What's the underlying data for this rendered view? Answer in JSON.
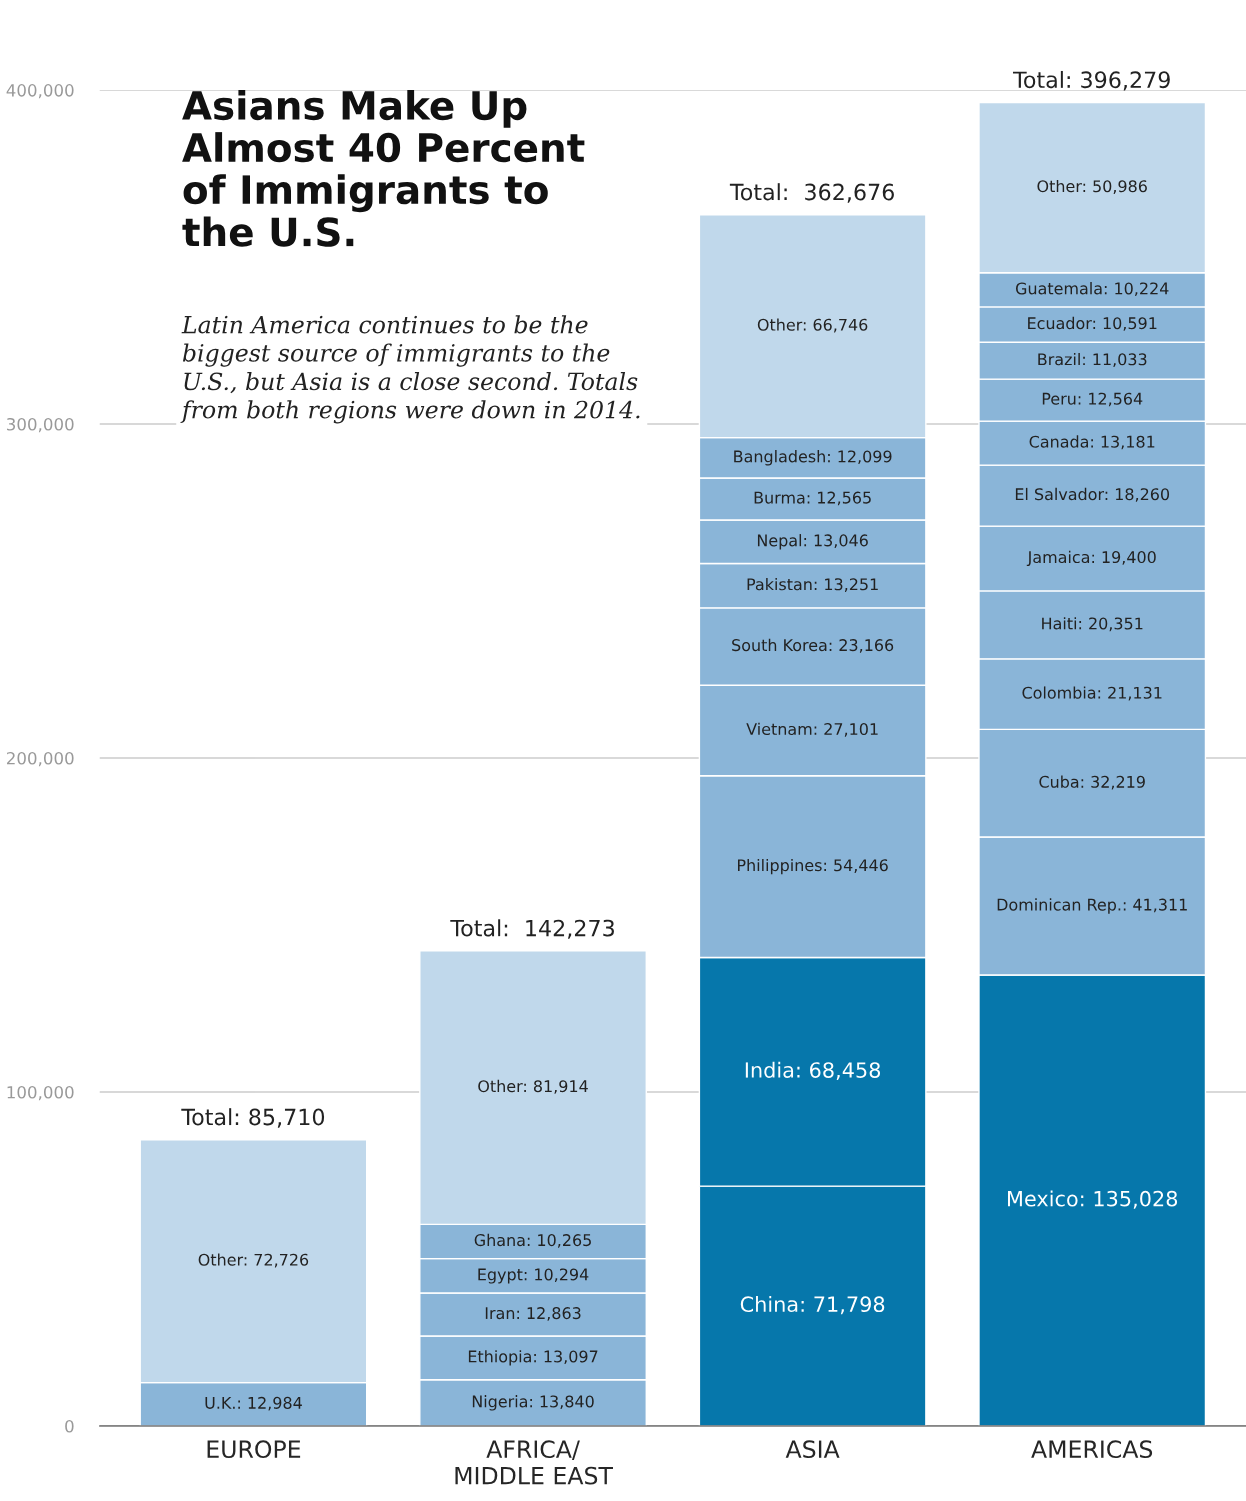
{
  "chart_data": {
    "type": "bar",
    "stacked": true,
    "title": "Asians Make Up Almost 40 Percent of Immigrants to the U.S.",
    "subtitle": "Latin America continues to be the biggest source of immigrants to the U.S., but Asia is a close second. Totals from both regions were down in 2014.",
    "categories": [
      "EUROPE",
      "AFRICA/\nMIDDLE EAST",
      "ASIA",
      "AMERICAS"
    ],
    "ylim": [
      0,
      400000
    ],
    "yticks": [
      {
        "value": 0,
        "label": "0"
      },
      {
        "value": 100000,
        "label": "100,000"
      },
      {
        "value": 200000,
        "label": "200,000"
      },
      {
        "value": 300000,
        "label": "300,000"
      },
      {
        "value": 400000,
        "label": "400,000"
      }
    ],
    "grid": "y",
    "totals": [
      "Total: 85,710",
      "Total:  142,273",
      "Total:  362,676",
      "Total: 396,279"
    ],
    "series": [
      {
        "values": [
          12984,
          13840,
          71798,
          135028
        ],
        "colors": [
          "#8ab5d8",
          "#8ab5d8",
          "#0677ab",
          "#0677ab"
        ],
        "value_labels": [
          "U.K.: 12,984",
          "Nigeria: 13,840",
          "China: 71,798",
          "Mexico: 135,028"
        ]
      },
      {
        "values": [
          72726,
          13097,
          68458,
          41311
        ],
        "colors": [
          "#c0d8eb",
          "#8ab5d8",
          "#0677ab",
          "#8ab5d8"
        ],
        "value_labels": [
          "Other: 72,726",
          "Ethiopia: 13,097",
          "India: 68,458",
          "Dominican Rep.: 41,311"
        ]
      },
      {
        "values": [
          null,
          12863,
          54446,
          32219
        ],
        "colors": [
          null,
          "#8ab5d8",
          "#8ab5d8",
          "#8ab5d8"
        ],
        "value_labels": [
          null,
          "Iran: 12,863",
          "Philippines: 54,446",
          "Cuba: 32,219"
        ]
      },
      {
        "values": [
          null,
          10294,
          27101,
          21131
        ],
        "colors": [
          null,
          "#8ab5d8",
          "#8ab5d8",
          "#8ab5d8"
        ],
        "value_labels": [
          null,
          "Egypt: 10,294",
          "Vietnam: 27,101",
          "Colombia: 21,131"
        ]
      },
      {
        "values": [
          null,
          10265,
          23166,
          20351
        ],
        "colors": [
          null,
          "#8ab5d8",
          "#8ab5d8",
          "#8ab5d8"
        ],
        "value_labels": [
          null,
          "Ghana: 10,265",
          "South Korea: 23,166",
          "Haiti: 20,351"
        ]
      },
      {
        "values": [
          null,
          81914,
          13251,
          19400
        ],
        "colors": [
          null,
          "#c0d8eb",
          "#8ab5d8",
          "#8ab5d8"
        ],
        "value_labels": [
          null,
          "Other: 81,914",
          "Pakistan: 13,251",
          "Jamaica: 19,400"
        ]
      },
      {
        "values": [
          null,
          null,
          13046,
          18260
        ],
        "colors": [
          null,
          null,
          "#8ab5d8",
          "#8ab5d8"
        ],
        "value_labels": [
          null,
          null,
          "Nepal: 13,046",
          "El Salvador: 18,260"
        ]
      },
      {
        "values": [
          null,
          null,
          12565,
          13181
        ],
        "colors": [
          null,
          null,
          "#8ab5d8",
          "#8ab5d8"
        ],
        "value_labels": [
          null,
          null,
          "Burma: 12,565",
          "Canada: 13,181"
        ]
      },
      {
        "values": [
          null,
          null,
          12099,
          12564
        ],
        "colors": [
          null,
          null,
          "#8ab5d8",
          "#8ab5d8"
        ],
        "value_labels": [
          null,
          null,
          "Bangladesh: 12,099",
          "Peru: 12,564"
        ]
      },
      {
        "values": [
          null,
          null,
          66746,
          11033
        ],
        "colors": [
          null,
          null,
          "#c0d8eb",
          "#8ab5d8"
        ],
        "value_labels": [
          null,
          null,
          "Other: 66,746",
          "Brazil: 11,033"
        ]
      },
      {
        "values": [
          null,
          null,
          null,
          10591
        ],
        "colors": [
          null,
          null,
          null,
          "#8ab5d8"
        ],
        "value_labels": [
          null,
          null,
          null,
          "Ecuador: 10,591"
        ]
      },
      {
        "values": [
          null,
          null,
          null,
          10224
        ],
        "colors": [
          null,
          null,
          null,
          "#8ab5d8"
        ],
        "value_labels": [
          null,
          null,
          null,
          "Guatemala: 10,224"
        ]
      },
      {
        "values": [
          null,
          null,
          null,
          50986
        ],
        "colors": [
          null,
          null,
          null,
          "#c0d8eb"
        ],
        "value_labels": [
          null,
          null,
          null,
          "Other: 50,986"
        ]
      }
    ]
  }
}
